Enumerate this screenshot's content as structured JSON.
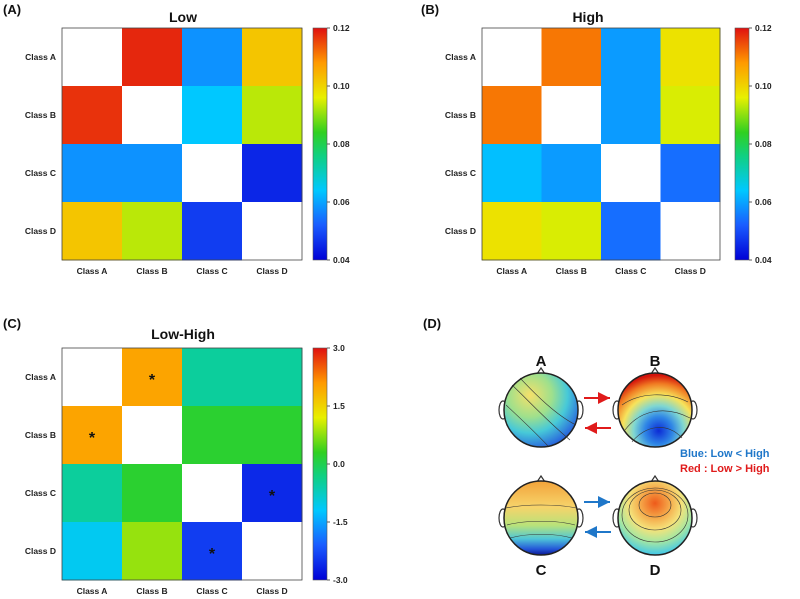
{
  "chart_data": [
    {
      "panel": "(A)",
      "type": "heatmap",
      "title": "Low",
      "rows": [
        "Class A",
        "Class B",
        "Class C",
        "Class D"
      ],
      "columns": [
        "Class A",
        "Class B",
        "Class C",
        "Class D"
      ],
      "values": [
        [
          null,
          0.118,
          0.058,
          0.102
        ],
        [
          0.117,
          null,
          0.064,
          0.093
        ],
        [
          0.058,
          0.058,
          null,
          0.045
        ],
        [
          0.102,
          0.093,
          0.048,
          null
        ]
      ],
      "colorbar": {
        "min": 0.04,
        "max": 0.12,
        "ticks": [
          "0.12",
          "0.10",
          "0.08",
          "0.06",
          "0.04"
        ]
      }
    },
    {
      "panel": "(B)",
      "type": "heatmap",
      "title": "High",
      "rows": [
        "Class A",
        "Class B",
        "Class C",
        "Class D"
      ],
      "columns": [
        "Class A",
        "Class B",
        "Class C",
        "Class D"
      ],
      "values": [
        [
          null,
          0.111,
          0.059,
          0.098
        ],
        [
          0.111,
          null,
          0.059,
          0.095
        ],
        [
          0.063,
          0.059,
          null,
          0.054
        ],
        [
          0.098,
          0.095,
          0.054,
          null
        ]
      ],
      "colorbar": {
        "min": 0.04,
        "max": 0.12,
        "ticks": [
          "0.12",
          "0.10",
          "0.08",
          "0.06",
          "0.04"
        ]
      }
    },
    {
      "panel": "(C)",
      "type": "heatmap",
      "title": "Low-High",
      "rows": [
        "Class A",
        "Class B",
        "Class C",
        "Class D"
      ],
      "columns": [
        "Class A",
        "Class B",
        "Class C",
        "Class D"
      ],
      "values": [
        [
          null,
          2.0,
          -0.5,
          -0.5
        ],
        [
          2.0,
          null,
          0.2,
          0.2
        ],
        [
          -0.5,
          0.2,
          null,
          -2.6
        ],
        [
          -1.1,
          0.8,
          -2.4,
          null
        ]
      ],
      "significant": [
        [
          0,
          1
        ],
        [
          1,
          0
        ],
        [
          2,
          3
        ],
        [
          3,
          2
        ]
      ],
      "marker": "*",
      "colorbar": {
        "min": -3.0,
        "max": 3.0,
        "ticks": [
          "3.0",
          "1.5",
          "0.0",
          "-1.5",
          "-3.0"
        ]
      }
    }
  ],
  "topomap_panel": {
    "label": "(D)",
    "heads": [
      "A",
      "B",
      "C",
      "D"
    ],
    "legend": {
      "blue": "Blue: Low < High",
      "red": "Red : Low > High",
      "blue_color": "#1f77c9",
      "red_color": "#e01b1b"
    }
  },
  "colors": {
    "empty_cell": "#ffffff",
    "text": "#111111"
  }
}
